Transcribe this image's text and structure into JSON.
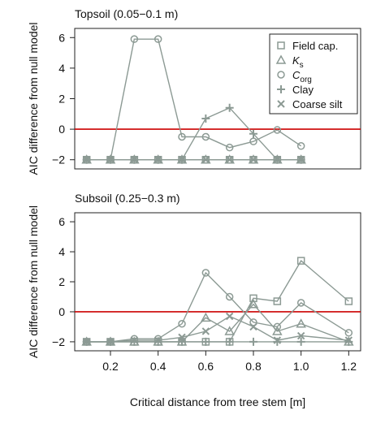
{
  "chart_data": {
    "type": "line",
    "xlabel": "Critical distance from tree stem [m]",
    "ylabel": "AIC difference from null model",
    "xlim": [
      0.05,
      1.25
    ],
    "ylim": [
      -2.6,
      6.6
    ],
    "x_ticks": [
      0.2,
      0.4,
      0.6,
      0.8,
      1.0,
      1.2
    ],
    "x_tick_labels": [
      "0.2",
      "0.4",
      "0.6",
      "0.8",
      "1.0",
      "1.2"
    ],
    "y_ticks": [
      -2,
      0,
      2,
      4,
      6
    ],
    "y_tick_labels": [
      "−2",
      "0",
      "2",
      "4",
      "6"
    ],
    "reference_line": {
      "y": 0,
      "color": "#cc0000"
    },
    "series_color": "#8c9a94",
    "legend": {
      "placement": "top-right",
      "entries": [
        {
          "key": "field_cap",
          "marker": "square",
          "label": "Field cap."
        },
        {
          "key": "ks",
          "marker": "triangle",
          "label_main": "K",
          "label_sub": "s"
        },
        {
          "key": "corg",
          "marker": "circle",
          "label_main": "C",
          "label_sub": "org"
        },
        {
          "key": "clay",
          "marker": "plus",
          "label": "Clay"
        },
        {
          "key": "coarse_silt",
          "marker": "cross",
          "label": "Coarse silt"
        }
      ]
    },
    "panels": [
      {
        "title": "Topsoil (0.05−0.1 m)",
        "series": [
          {
            "key": "field_cap",
            "marker": "square",
            "x": [
              0.1,
              0.2,
              0.3,
              0.4,
              0.5,
              0.6,
              0.7,
              0.8,
              0.9,
              1.0
            ],
            "y": [
              -2,
              -2,
              -2,
              -2,
              -2,
              -2,
              -2,
              -2,
              -2,
              -2
            ]
          },
          {
            "key": "ks",
            "marker": "triangle",
            "x": [
              0.1,
              0.2,
              0.3,
              0.4,
              0.5,
              0.6,
              0.7,
              0.8,
              0.9,
              1.0
            ],
            "y": [
              -2,
              -2,
              -2,
              -2,
              -2,
              -2,
              -2,
              -2,
              -2,
              -2
            ]
          },
          {
            "key": "corg",
            "marker": "circle",
            "x": [
              0.1,
              0.2,
              0.3,
              0.4,
              0.5,
              0.6,
              0.7,
              0.8,
              0.9,
              1.0
            ],
            "y": [
              -2,
              -2,
              5.9,
              5.9,
              -0.5,
              -0.5,
              -1.2,
              -0.8,
              -0.05,
              -1.1
            ]
          },
          {
            "key": "clay",
            "marker": "plus",
            "x": [
              0.1,
              0.2,
              0.3,
              0.4,
              0.5,
              0.6,
              0.7,
              0.8,
              0.9,
              1.0
            ],
            "y": [
              -2,
              -2,
              -2,
              -2,
              -2,
              0.7,
              1.4,
              -0.3,
              -2,
              -2
            ]
          },
          {
            "key": "coarse_silt",
            "marker": "cross",
            "x": [
              0.1,
              0.2,
              0.3,
              0.4,
              0.5,
              0.6,
              0.7,
              0.8,
              0.9,
              1.0
            ],
            "y": [
              -2,
              -2,
              -2,
              -2,
              -2,
              -2,
              -2,
              -2,
              -2,
              -2
            ]
          }
        ]
      },
      {
        "title": "Subsoil (0.25−0.3 m)",
        "series": [
          {
            "key": "field_cap",
            "marker": "square",
            "x": [
              0.1,
              0.2,
              0.3,
              0.4,
              0.5,
              0.6,
              0.7,
              0.8,
              0.9,
              1.0,
              1.2
            ],
            "y": [
              -2,
              -2,
              -2,
              -2,
              -2,
              -2,
              -2,
              0.9,
              0.7,
              3.4,
              0.7
            ]
          },
          {
            "key": "ks",
            "marker": "triangle",
            "x": [
              0.1,
              0.2,
              0.3,
              0.4,
              0.5,
              0.6,
              0.7,
              0.8,
              0.9,
              1.0,
              1.2
            ],
            "y": [
              -2,
              -2,
              -2,
              -2,
              -2,
              -0.4,
              -1.3,
              0.5,
              -1.3,
              -0.8,
              -2
            ]
          },
          {
            "key": "corg",
            "marker": "circle",
            "x": [
              0.1,
              0.2,
              0.3,
              0.4,
              0.5,
              0.6,
              0.7,
              0.8,
              0.9,
              1.0,
              1.2
            ],
            "y": [
              -2,
              -2,
              -1.8,
              -1.8,
              -0.8,
              2.6,
              1.0,
              -0.7,
              -1.0,
              0.6,
              -1.4
            ]
          },
          {
            "key": "clay",
            "marker": "plus",
            "x": [
              0.1,
              0.2,
              0.3,
              0.4,
              0.5,
              0.6,
              0.7,
              0.8,
              0.9,
              1.0,
              1.2
            ],
            "y": [
              -2,
              -2,
              -2,
              -2,
              -2,
              -2,
              -2,
              -2,
              -2,
              -2,
              -2
            ]
          },
          {
            "key": "coarse_silt",
            "marker": "cross",
            "x": [
              0.1,
              0.2,
              0.3,
              0.4,
              0.5,
              0.6,
              0.7,
              0.8,
              0.9,
              1.0,
              1.2
            ],
            "y": [
              -2,
              -2,
              -1.9,
              -1.9,
              -1.7,
              -1.3,
              -0.3,
              -1.0,
              -1.9,
              -1.6,
              -1.9
            ]
          }
        ]
      }
    ]
  }
}
